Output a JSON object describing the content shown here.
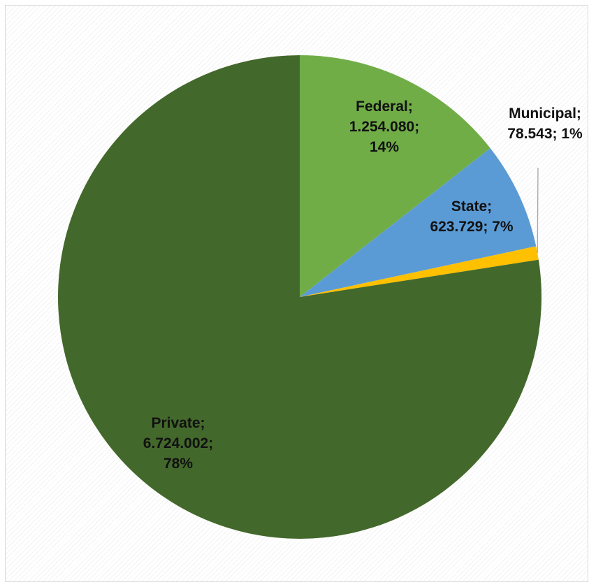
{
  "chart_data": {
    "type": "pie",
    "title": "",
    "start_angle_deg": 0,
    "direction": "clockwise",
    "slices": [
      {
        "name": "Federal",
        "value": 1254080,
        "percent": 14,
        "color": "#70ad47",
        "label_lines": [
          "Federal;",
          "1.254.080;",
          "14%"
        ]
      },
      {
        "name": "State",
        "value": 623729,
        "percent": 7,
        "color": "#5b9bd5",
        "label_lines": [
          "State;",
          "623.729; 7%"
        ]
      },
      {
        "name": "Municipal",
        "value": 78543,
        "percent": 1,
        "color": "#ffc000",
        "label_lines": [
          "Municipal;",
          "78.543; 1%"
        ]
      },
      {
        "name": "Private",
        "value": 6724002,
        "percent": 78,
        "color": "#43682b",
        "label_lines": [
          "Private;",
          "6.724.002;",
          "78%"
        ]
      }
    ],
    "legend": "none",
    "grid": false
  }
}
